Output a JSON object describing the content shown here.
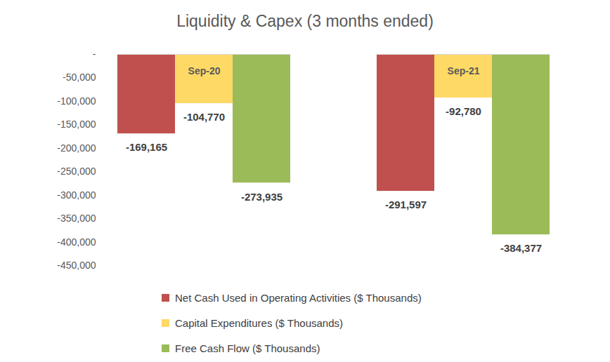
{
  "chart_data": {
    "type": "bar",
    "title": "Liquidity & Capex (3 months ended)",
    "categories": [
      "Sep-20",
      "Sep-21"
    ],
    "series": [
      {
        "name": "Net Cash Used in Operating Activities ($ Thousands)",
        "color": "#C0504D",
        "values": [
          -169165,
          -291597
        ],
        "value_labels": [
          "-169,165",
          "-291,597"
        ]
      },
      {
        "name": "Capital Expenditures ($ Thousands)",
        "color": "#FFD966",
        "values": [
          -104770,
          -92780
        ],
        "value_labels": [
          "-104,770",
          "-92,780"
        ]
      },
      {
        "name": "Free Cash Flow ($ Thousands)",
        "color": "#9BBB59",
        "values": [
          -273935,
          -384377
        ],
        "value_labels": [
          "-273,935",
          "-384,377"
        ]
      }
    ],
    "ylim": [
      -450000,
      0
    ],
    "yticks": [
      {
        "value": -450000,
        "label": "-450,000"
      },
      {
        "value": -400000,
        "label": "-400,000"
      },
      {
        "value": -350000,
        "label": "-350,000"
      },
      {
        "value": -300000,
        "label": "-300,000"
      },
      {
        "value": -250000,
        "label": "-250,000"
      },
      {
        "value": -200000,
        "label": "-200,000"
      },
      {
        "value": -150000,
        "label": "-150,000"
      },
      {
        "value": -100000,
        "label": "-100,000"
      },
      {
        "value": -50000,
        "label": "-50,000"
      },
      {
        "value": 0,
        "label": "-"
      }
    ],
    "grid": false,
    "data_labels": true,
    "legend": "bottom"
  }
}
